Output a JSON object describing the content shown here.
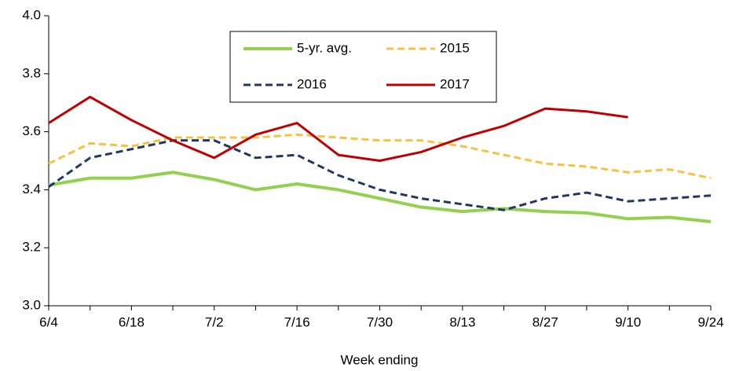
{
  "chart_data": {
    "type": "line",
    "xlabel": "Week ending",
    "categories": [
      "6/4",
      null,
      "6/18",
      null,
      "7/2",
      null,
      "7/16",
      null,
      "7/30",
      null,
      "8/13",
      null,
      "8/27",
      null,
      "9/10",
      null,
      "9/24"
    ],
    "series": [
      {
        "name": "5-yr. avg.",
        "color": "#92d050",
        "style": "solid",
        "width": 4,
        "values": [
          3.416,
          3.44,
          3.44,
          3.46,
          3.435,
          3.4,
          3.42,
          3.4,
          3.37,
          3.34,
          3.325,
          3.335,
          3.325,
          3.32,
          3.3,
          3.305,
          3.29
        ]
      },
      {
        "name": "2015",
        "color": "#f5c242",
        "style": "dashed",
        "width": 3,
        "values": [
          3.49,
          3.56,
          3.55,
          3.58,
          3.58,
          3.58,
          3.59,
          3.58,
          3.57,
          3.57,
          3.55,
          3.52,
          3.49,
          3.48,
          3.46,
          3.47,
          3.44
        ]
      },
      {
        "name": "2016",
        "color": "#1f3864",
        "style": "dashed",
        "width": 3,
        "values": [
          3.41,
          3.51,
          3.54,
          3.57,
          3.57,
          3.51,
          3.52,
          3.45,
          3.4,
          3.37,
          3.35,
          3.33,
          3.37,
          3.39,
          3.36,
          3.37,
          3.38
        ]
      },
      {
        "name": "2017",
        "color": "#c00000",
        "style": "solid",
        "width": 3,
        "values": [
          3.63,
          3.72,
          3.64,
          3.57,
          3.51,
          3.59,
          3.63,
          3.52,
          3.5,
          3.53,
          3.58,
          3.62,
          3.68,
          3.67,
          3.65,
          null,
          null
        ]
      }
    ],
    "ylim": [
      3.0,
      4.0
    ],
    "yticks": [
      {
        "value": 3.0,
        "label": "3.0"
      },
      3.2,
      3.4,
      3.6,
      3.8,
      {
        "value": 4.0,
        "label": "4.0"
      }
    ],
    "grid": false,
    "legend": "upper center"
  }
}
